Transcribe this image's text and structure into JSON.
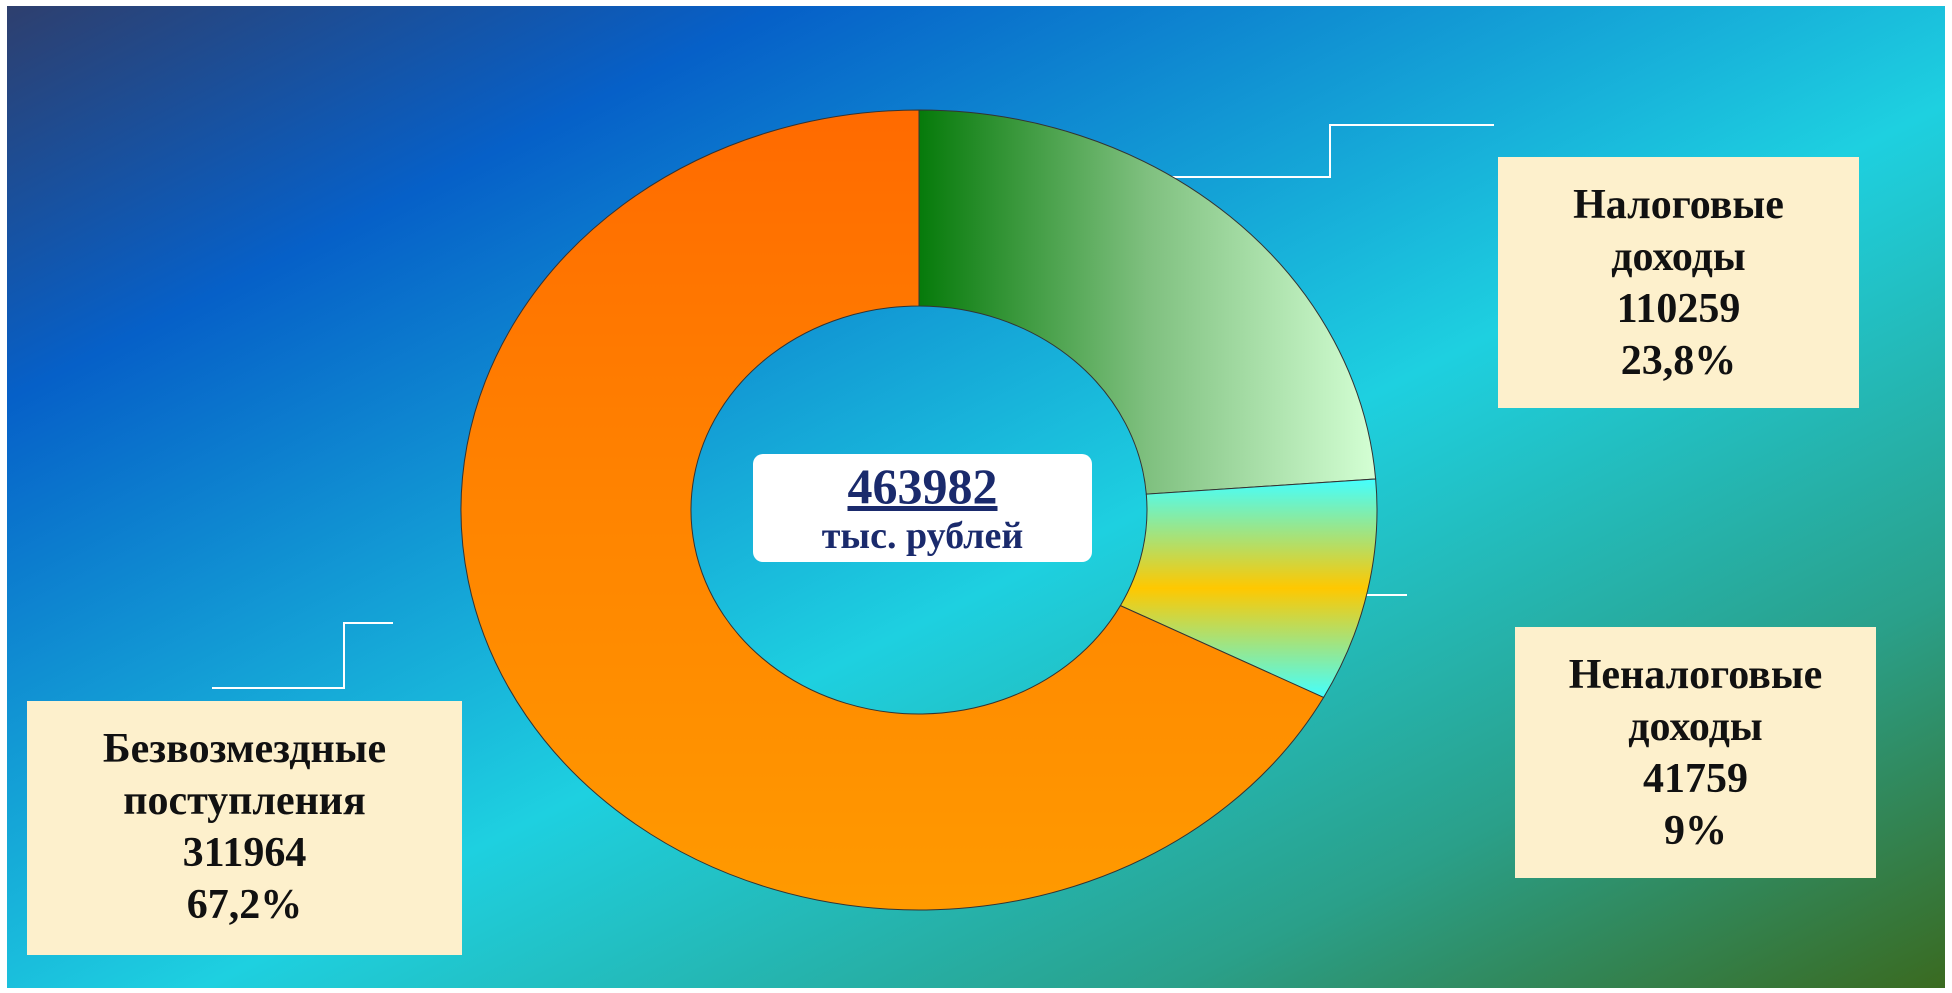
{
  "chart_data": {
    "type": "donut",
    "total": 463982,
    "total_unit": "тыс. рублей",
    "categories": [
      "Налоговые доходы",
      "Неналоговые доходы",
      "Безвозмездные поступления"
    ],
    "values": [
      110259,
      41759,
      311964
    ],
    "percent": [
      23.8,
      9,
      67.2
    ],
    "percent_labels": [
      "23,8%",
      "9%",
      "67,2%"
    ],
    "colors": [
      "#7fc07f",
      "#ffc800",
      "#ff8400"
    ]
  }
}
